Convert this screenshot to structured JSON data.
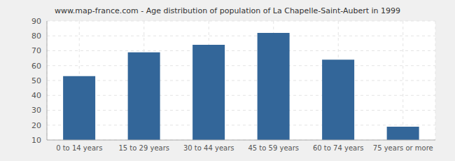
{
  "chart_data": {
    "type": "bar",
    "title": "www.map-france.com - Age distribution of population of La Chapelle-Saint-Aubert in 1999",
    "categories": [
      "0 to 14 years",
      "15 to 29 years",
      "30 to 44 years",
      "45 to 59 years",
      "60 to 74 years",
      "75 years or more"
    ],
    "values": [
      53,
      69,
      74,
      82,
      64,
      19
    ],
    "color": "#336699",
    "ylim": [
      10,
      90
    ],
    "yticks": [
      10,
      20,
      30,
      40,
      50,
      60,
      70,
      80,
      90
    ],
    "grid": true
  }
}
